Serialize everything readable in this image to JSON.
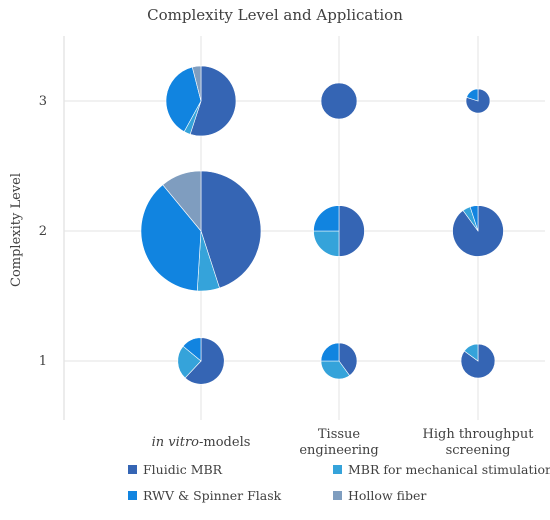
{
  "chart_data": {
    "type": "bubble-pie",
    "title": "Complexity Level and Application",
    "ylabel": "Complexity Level",
    "xlabel": "",
    "y_ticks": [
      "1",
      "2",
      "3"
    ],
    "ylim": [
      0,
      3.5
    ],
    "grid": true,
    "categories": [
      {
        "key": "invitro",
        "label_italic": "in vitro",
        "label_rest": "-models"
      },
      {
        "key": "tissue",
        "label_lines": [
          "Tissue",
          "engineering"
        ]
      },
      {
        "key": "hts",
        "label_lines": [
          "High throughput",
          "screening"
        ]
      }
    ],
    "series": [
      {
        "name": "Fluidic MBR",
        "color": "#3565b4"
      },
      {
        "name": "MBR for mechanical stimulation",
        "color": "#35a3da"
      },
      {
        "name": "RWV & Spinner Flask",
        "color": "#1184e0"
      },
      {
        "name": "Hollow fiber",
        "color": "#7f9dbf"
      }
    ],
    "bubbles": [
      {
        "category": "invitro",
        "level": 3,
        "size": 0.34,
        "values": [
          55,
          3,
          38,
          4
        ]
      },
      {
        "category": "tissue",
        "level": 3,
        "size": 0.09,
        "values": [
          100,
          0,
          0,
          0
        ]
      },
      {
        "category": "hts",
        "level": 3,
        "size": 0.04,
        "values": [
          80,
          0,
          20,
          0
        ]
      },
      {
        "category": "invitro",
        "level": 2,
        "size": 1.0,
        "values": [
          45,
          6,
          38,
          11
        ]
      },
      {
        "category": "tissue",
        "level": 2,
        "size": 0.18,
        "values": [
          50,
          25,
          25,
          0
        ]
      },
      {
        "category": "hts",
        "level": 2,
        "size": 0.18,
        "values": [
          90,
          5,
          5,
          0
        ]
      },
      {
        "category": "invitro",
        "level": 1,
        "size": 0.15,
        "values": [
          62,
          24,
          14,
          0
        ]
      },
      {
        "category": "tissue",
        "level": 1,
        "size": 0.09,
        "values": [
          40,
          35,
          25,
          0
        ]
      },
      {
        "category": "hts",
        "level": 1,
        "size": 0.08,
        "values": [
          85,
          15,
          0,
          0
        ]
      }
    ],
    "legend_position": "bottom"
  }
}
